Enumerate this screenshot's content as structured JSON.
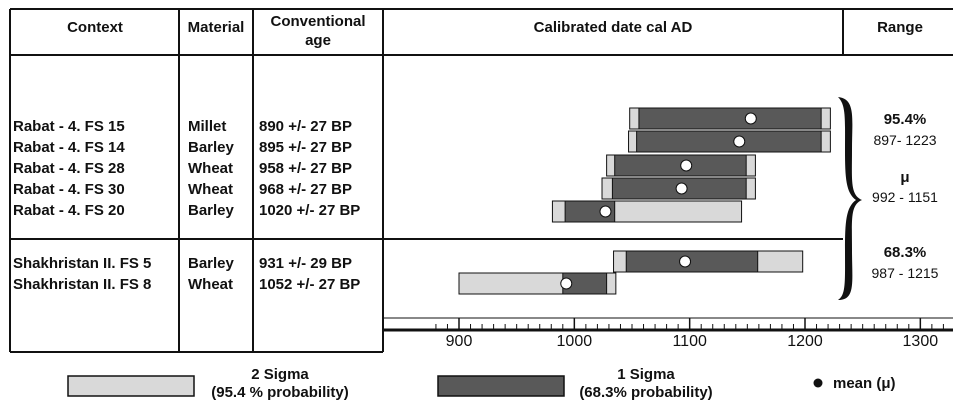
{
  "headers": {
    "context": "Context",
    "material": "Material",
    "conventional_age_1": "Conventional",
    "conventional_age_2": "age",
    "calibrated": "Calibrated date cal AD",
    "range": "Range"
  },
  "range_column": {
    "sigma2_label": "95.4%",
    "sigma2_range": "897- 1223",
    "mu_label": "μ",
    "mu_range": "992 - 1151",
    "sigma1_label": "68.3%",
    "sigma1_range": "987 - 1215"
  },
  "legend": {
    "two_sigma_1": "2 Sigma",
    "two_sigma_2": "(95.4 % probability)",
    "one_sigma_1": "1 Sigma",
    "one_sigma_2": "(68.3% probability)",
    "mean": "mean (μ)"
  },
  "colors": {
    "two_sigma": "#d9d9d9",
    "one_sigma": "#595959",
    "mean_marker": "#ffffff"
  },
  "chart_data": {
    "type": "range-bar",
    "xlabel": "Calibrated date cal AD",
    "xlim": [
      850,
      1320
    ],
    "x_ticks": [
      900,
      1000,
      1100,
      1200,
      1300
    ],
    "x_minor_step": 10,
    "rows": [
      {
        "context": "Rabat - 4. FS 15",
        "material": "Millet",
        "age": "890 +/- 27 BP",
        "sigma2": [
          1048,
          1222
        ],
        "sigma1": [
          1056,
          1214
        ],
        "mean": 1153
      },
      {
        "context": "Rabat - 4. FS 14",
        "material": "Barley",
        "age": "895 +/- 27 BP",
        "sigma2": [
          1047,
          1222
        ],
        "sigma1": [
          1054,
          1214
        ],
        "mean": 1143
      },
      {
        "context": "Rabat - 4. FS 28",
        "material": "Wheat",
        "age": "958 +/- 27 BP",
        "sigma2": [
          1028,
          1157
        ],
        "sigma1": [
          1035,
          1149
        ],
        "mean": 1097
      },
      {
        "context": "Rabat - 4. FS 30",
        "material": "Wheat",
        "age": "968 +/- 27 BP",
        "sigma2": [
          1024,
          1157
        ],
        "sigma1": [
          1033,
          1149
        ],
        "mean": 1093
      },
      {
        "context": "Rabat - 4. FS 20",
        "material": "Barley",
        "age": "1020 +/- 27 BP",
        "sigma2": [
          981,
          1145
        ],
        "sigma1": [
          992,
          1035
        ],
        "mean": 1027
      },
      {
        "context": "Shakhristan II. FS 5",
        "material": "Barley",
        "age": "931 +/- 29 BP",
        "sigma2": [
          1034,
          1198
        ],
        "sigma1": [
          1045,
          1159
        ],
        "mean": 1096
      },
      {
        "context": "Shakhristan II. FS 8",
        "material": "Wheat",
        "age": "1052 +/- 27 BP",
        "sigma2": [
          900,
          1036
        ],
        "sigma1": [
          990,
          1028
        ],
        "mean": 993
      }
    ]
  }
}
